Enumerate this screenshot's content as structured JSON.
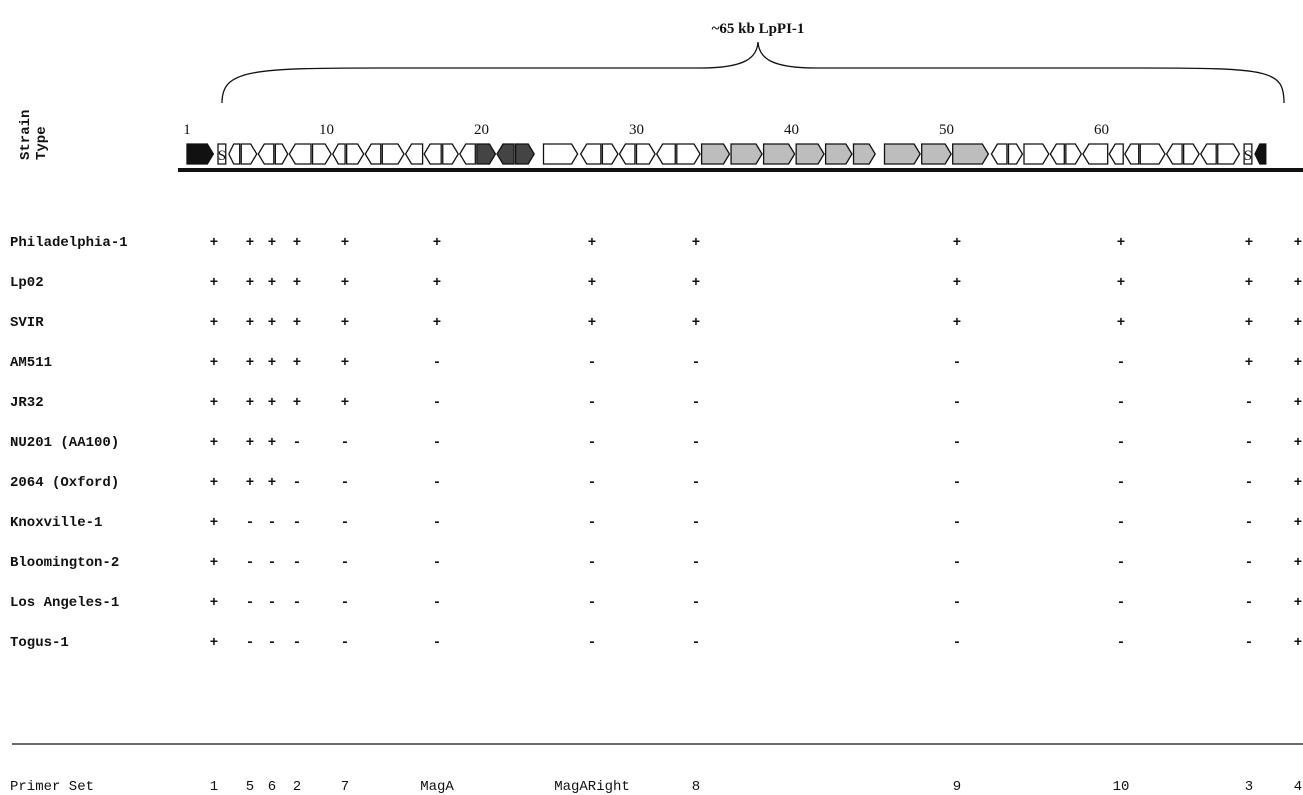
{
  "title": "~65 kb LpPI-1",
  "axis_label": "Strain\nType",
  "scale": {
    "labels": [
      "1",
      "10",
      "20",
      "30",
      "40",
      "50",
      "60"
    ],
    "kb": [
      1,
      10,
      20,
      30,
      40,
      50,
      60
    ],
    "kb_start": 1,
    "kb_end": 66
  },
  "genes": [
    {
      "start": 1.0,
      "end": 2.7,
      "dir": "right",
      "fill": "black"
    },
    {
      "start": 3.0,
      "end": 3.5,
      "dir": "none",
      "fill": "white",
      "label": "S"
    },
    {
      "start": 3.7,
      "end": 4.4,
      "dir": "left",
      "fill": "white"
    },
    {
      "start": 4.5,
      "end": 5.5,
      "dir": "right",
      "fill": "white"
    },
    {
      "start": 5.6,
      "end": 6.6,
      "dir": "left",
      "fill": "white"
    },
    {
      "start": 6.7,
      "end": 7.5,
      "dir": "right",
      "fill": "white"
    },
    {
      "start": 7.6,
      "end": 9.0,
      "dir": "left",
      "fill": "white"
    },
    {
      "start": 9.1,
      "end": 10.3,
      "dir": "right",
      "fill": "white"
    },
    {
      "start": 10.4,
      "end": 11.2,
      "dir": "left",
      "fill": "white"
    },
    {
      "start": 11.3,
      "end": 12.4,
      "dir": "right",
      "fill": "white"
    },
    {
      "start": 12.5,
      "end": 13.5,
      "dir": "left",
      "fill": "white"
    },
    {
      "start": 13.6,
      "end": 15.0,
      "dir": "right",
      "fill": "white"
    },
    {
      "start": 15.1,
      "end": 16.2,
      "dir": "left",
      "fill": "white"
    },
    {
      "start": 16.3,
      "end": 17.4,
      "dir": "left",
      "fill": "white"
    },
    {
      "start": 17.5,
      "end": 18.5,
      "dir": "right",
      "fill": "white"
    },
    {
      "start": 18.6,
      "end": 19.6,
      "dir": "left",
      "fill": "white"
    },
    {
      "start": 19.7,
      "end": 20.9,
      "dir": "right",
      "fill": "check"
    },
    {
      "start": 21.0,
      "end": 22.1,
      "dir": "left",
      "fill": "check"
    },
    {
      "start": 22.2,
      "end": 23.4,
      "dir": "right",
      "fill": "check"
    },
    {
      "start": 24.0,
      "end": 26.2,
      "dir": "right",
      "fill": "white"
    },
    {
      "start": 26.4,
      "end": 27.7,
      "dir": "left",
      "fill": "white"
    },
    {
      "start": 27.8,
      "end": 28.8,
      "dir": "right",
      "fill": "white"
    },
    {
      "start": 28.9,
      "end": 29.9,
      "dir": "left",
      "fill": "white"
    },
    {
      "start": 30.0,
      "end": 31.2,
      "dir": "right",
      "fill": "white"
    },
    {
      "start": 31.3,
      "end": 32.5,
      "dir": "left",
      "fill": "white"
    },
    {
      "start": 32.6,
      "end": 34.1,
      "dir": "right",
      "fill": "white"
    },
    {
      "start": 34.2,
      "end": 36.0,
      "dir": "right",
      "fill": "grey"
    },
    {
      "start": 36.1,
      "end": 38.1,
      "dir": "right",
      "fill": "grey"
    },
    {
      "start": 38.2,
      "end": 40.2,
      "dir": "right",
      "fill": "grey"
    },
    {
      "start": 40.3,
      "end": 42.1,
      "dir": "right",
      "fill": "grey"
    },
    {
      "start": 42.2,
      "end": 43.9,
      "dir": "right",
      "fill": "grey"
    },
    {
      "start": 44.0,
      "end": 45.4,
      "dir": "right",
      "fill": "grey"
    },
    {
      "start": 46.0,
      "end": 48.3,
      "dir": "right",
      "fill": "grey"
    },
    {
      "start": 48.4,
      "end": 50.3,
      "dir": "right",
      "fill": "grey"
    },
    {
      "start": 50.4,
      "end": 52.7,
      "dir": "right",
      "fill": "grey"
    },
    {
      "start": 52.9,
      "end": 53.9,
      "dir": "left",
      "fill": "white"
    },
    {
      "start": 54.0,
      "end": 54.9,
      "dir": "right",
      "fill": "white"
    },
    {
      "start": 55.0,
      "end": 56.6,
      "dir": "right",
      "fill": "white"
    },
    {
      "start": 56.7,
      "end": 57.6,
      "dir": "left",
      "fill": "white"
    },
    {
      "start": 57.7,
      "end": 58.7,
      "dir": "right",
      "fill": "white"
    },
    {
      "start": 58.8,
      "end": 60.4,
      "dir": "left",
      "fill": "white"
    },
    {
      "start": 60.5,
      "end": 61.4,
      "dir": "left",
      "fill": "white"
    },
    {
      "start": 61.5,
      "end": 62.4,
      "dir": "left",
      "fill": "white"
    },
    {
      "start": 62.5,
      "end": 64.1,
      "dir": "right",
      "fill": "white"
    },
    {
      "start": 64.2,
      "end": 65.2,
      "dir": "left",
      "fill": "white"
    },
    {
      "start": 65.3,
      "end": 66.3,
      "dir": "right",
      "fill": "white"
    },
    {
      "start": 66.4,
      "end": 67.4,
      "dir": "left",
      "fill": "white"
    },
    {
      "start": 67.5,
      "end": 68.9,
      "dir": "right",
      "fill": "white"
    },
    {
      "start": 69.2,
      "end": 69.7,
      "dir": "none",
      "fill": "white",
      "label": "S"
    },
    {
      "start": 69.9,
      "end": 70.6,
      "dir": "left",
      "fill": "black"
    }
  ],
  "primer_label": "Primer Set",
  "primers": [
    "1",
    "5",
    "6",
    "2",
    "7",
    "MagA",
    "MagARight",
    "8",
    "9",
    "10",
    "3",
    "4"
  ],
  "strains": [
    {
      "name": "Philadelphia-1",
      "results": [
        "+",
        "+",
        "+",
        "+",
        "+",
        "+",
        "+",
        "+",
        "+",
        "+",
        "+",
        "+"
      ]
    },
    {
      "name": "Lp02",
      "results": [
        "+",
        "+",
        "+",
        "+",
        "+",
        "+",
        "+",
        "+",
        "+",
        "+",
        "+",
        "+"
      ]
    },
    {
      "name": "SVIR",
      "results": [
        "+",
        "+",
        "+",
        "+",
        "+",
        "+",
        "+",
        "+",
        "+",
        "+",
        "+",
        "+"
      ]
    },
    {
      "name": "AM511",
      "results": [
        "+",
        "+",
        "+",
        "+",
        "+",
        "-",
        "-",
        "-",
        "-",
        "-",
        "+",
        "+"
      ]
    },
    {
      "name": "JR32",
      "results": [
        "+",
        "+",
        "+",
        "+",
        "+",
        "-",
        "-",
        "-",
        "-",
        "-",
        "-",
        "+"
      ]
    },
    {
      "name": "NU201 (AA100)",
      "results": [
        "+",
        "+",
        "+",
        "-",
        "-",
        "-",
        "-",
        "-",
        "-",
        "-",
        "-",
        "+"
      ]
    },
    {
      "name": "2064 (Oxford)",
      "results": [
        "+",
        "+",
        "+",
        "-",
        "-",
        "-",
        "-",
        "-",
        "-",
        "-",
        "-",
        "+"
      ]
    },
    {
      "name": "Knoxville-1",
      "results": [
        "+",
        "-",
        "-",
        "-",
        "-",
        "-",
        "-",
        "-",
        "-",
        "-",
        "-",
        "+"
      ]
    },
    {
      "name": "Bloomington-2",
      "results": [
        "+",
        "-",
        "-",
        "-",
        "-",
        "-",
        "-",
        "-",
        "-",
        "-",
        "-",
        "+"
      ]
    },
    {
      "name": "Los Angeles-1",
      "results": [
        "+",
        "-",
        "-",
        "-",
        "-",
        "-",
        "-",
        "-",
        "-",
        "-",
        "-",
        "+"
      ]
    },
    {
      "name": "Togus-1",
      "results": [
        "+",
        "-",
        "-",
        "-",
        "-",
        "-",
        "-",
        "-",
        "-",
        "-",
        "-",
        "+"
      ]
    }
  ]
}
